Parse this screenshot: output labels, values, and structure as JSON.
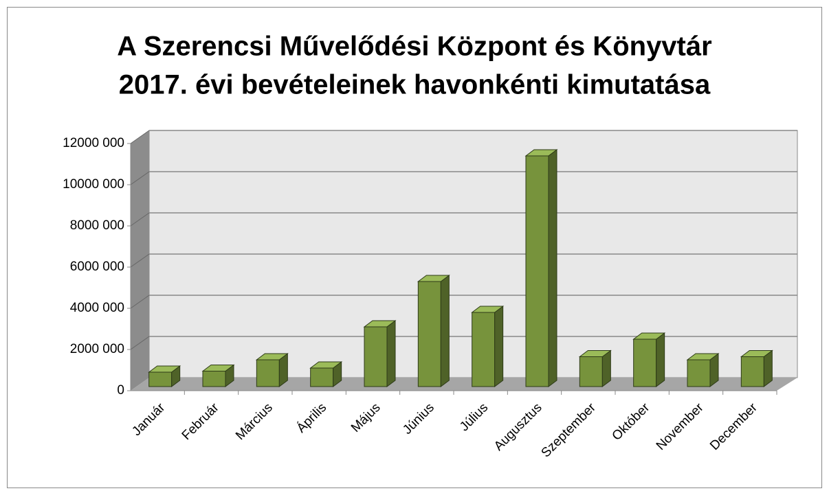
{
  "chart_data": {
    "type": "bar3d",
    "title": [
      "A Szerencsi Művelődési Központ és Könyvtár",
      "2017. évi bevételeinek havonkénti kimutatása"
    ],
    "categories": [
      "Január",
      "Február",
      "Március",
      "Április",
      "Május",
      "Június",
      "Július",
      "Augusztus",
      "Szeptember",
      "Október",
      "November",
      "December"
    ],
    "values": [
      700000,
      750000,
      1300000,
      900000,
      2900000,
      5100000,
      3600000,
      11200000,
      1450000,
      2300000,
      1300000,
      1450000
    ],
    "color": "#77933c",
    "ylim": [
      0,
      12000000
    ],
    "yticks": [
      {
        "value": 0,
        "label": "0"
      },
      {
        "value": 2000000,
        "label": "2000 000"
      },
      {
        "value": 4000000,
        "label": "4000 000"
      },
      {
        "value": 6000000,
        "label": "6000 000"
      },
      {
        "value": 8000000,
        "label": "8000 000"
      },
      {
        "value": 10000000,
        "label": "10000 000"
      },
      {
        "value": 12000000,
        "label": "12000 000"
      }
    ],
    "grid": true
  }
}
